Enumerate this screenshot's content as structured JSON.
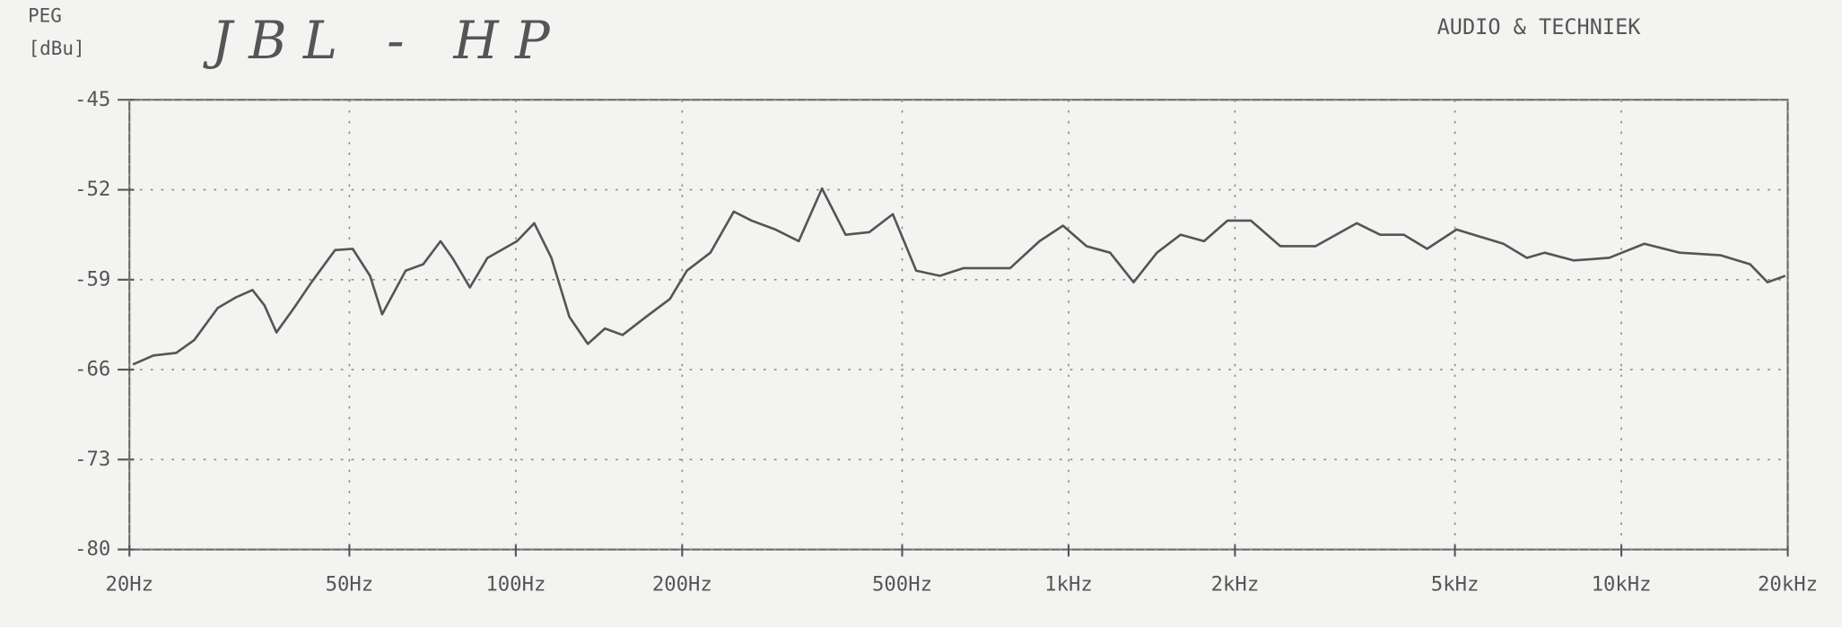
{
  "chart_data": {
    "type": "line",
    "title": "JBL - HP",
    "annotation": "AUDIO & TECHNIEK",
    "y_label_top": "PEG",
    "y_label": "[dBu]",
    "x_scale": "log",
    "grid": true,
    "xlim": [
      20,
      20000
    ],
    "ylim": [
      -80,
      -45
    ],
    "xticks": [
      {
        "value": 20,
        "label": "20Hz"
      },
      {
        "value": 50,
        "label": "50Hz"
      },
      {
        "value": 100,
        "label": "100Hz"
      },
      {
        "value": 200,
        "label": "200Hz"
      },
      {
        "value": 500,
        "label": "500Hz"
      },
      {
        "value": 1000,
        "label": "1kHz"
      },
      {
        "value": 2000,
        "label": "2kHz"
      },
      {
        "value": 5000,
        "label": "5kHz"
      },
      {
        "value": 10000,
        "label": "10kHz"
      },
      {
        "value": 20000,
        "label": "20kHz"
      }
    ],
    "yticks": [
      -45,
      -52,
      -59,
      -66,
      -73,
      -80
    ],
    "x": [
      20.3,
      22.1,
      24.3,
      26.2,
      28.9,
      31.1,
      33.4,
      35.1,
      36.9,
      39.7,
      42.7,
      47.1,
      50.7,
      54.5,
      57.3,
      63.2,
      68,
      73.1,
      76.8,
      82.6,
      88.9,
      100.5,
      108,
      116,
      125,
      135,
      145,
      156,
      172,
      190,
      204,
      225,
      248,
      267,
      295,
      325,
      358,
      395,
      436,
      481,
      530,
      585,
      645,
      784,
      886,
      977,
      1078,
      1189,
      1311,
      1445,
      1594,
      1758,
      1938,
      2137,
      2416,
      2797,
      3321,
      3662,
      4038,
      4453,
      5033,
      6119,
      6749,
      7262,
      8207,
      9503,
      11006,
      12745,
      15123,
      17098,
      18388,
      19795
    ],
    "series": [
      {
        "color": "#555555",
        "values": [
          -65.6,
          -64.9,
          -64.7,
          -63.7,
          -61.2,
          -60.4,
          -59.8,
          -61.0,
          -63.1,
          -61.2,
          -59.2,
          -56.7,
          -56.6,
          -58.7,
          -61.7,
          -58.3,
          -57.8,
          -56.0,
          -57.3,
          -59.6,
          -57.3,
          -56.0,
          -54.6,
          -57.3,
          -61.9,
          -64.0,
          -62.8,
          -63.3,
          -61.9,
          -60.5,
          -58.3,
          -56.9,
          -53.7,
          -54.4,
          -55.1,
          -56.0,
          -51.9,
          -55.5,
          -55.3,
          -53.9,
          -58.3,
          -58.7,
          -58.1,
          -58.1,
          -56.0,
          -54.8,
          -56.4,
          -56.9,
          -59.2,
          -56.9,
          -55.5,
          -56.0,
          -54.4,
          -54.4,
          -56.4,
          -56.4,
          -54.6,
          -55.5,
          -55.5,
          -56.6,
          -55.1,
          -56.2,
          -57.3,
          -56.9,
          -57.5,
          -57.3,
          -56.2,
          -56.9,
          -57.1,
          -57.8,
          -59.2,
          -58.7
        ]
      }
    ]
  }
}
